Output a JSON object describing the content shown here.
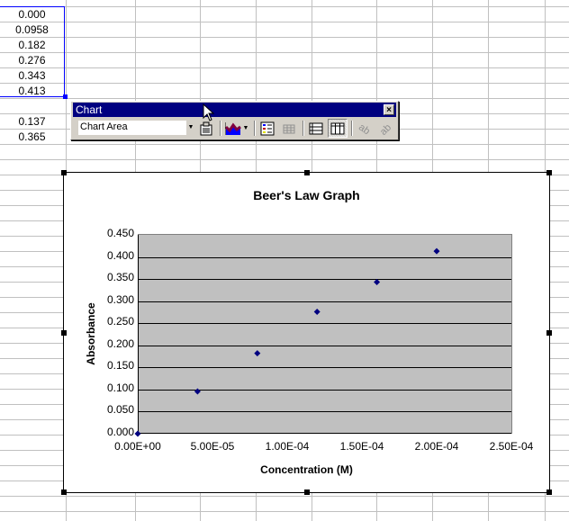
{
  "spreadsheet": {
    "column_values": [
      "0.000",
      "0.0958",
      "0.182",
      "0.276",
      "0.343",
      "0.413",
      "",
      "0.137",
      "0.365"
    ]
  },
  "toolbar": {
    "title": "Chart",
    "close_label": "×",
    "chart_objects_value": "Chart Area",
    "buttons": [
      {
        "name": "format-chart-area-icon"
      },
      {
        "name": "chart-type-icon"
      },
      {
        "name": "legend-icon"
      },
      {
        "name": "data-table-icon"
      },
      {
        "name": "by-row-icon"
      },
      {
        "name": "by-column-icon"
      },
      {
        "name": "angle-text-downward-icon"
      },
      {
        "name": "angle-text-upward-icon"
      }
    ]
  },
  "chart_data": {
    "type": "scatter",
    "title": "Beer's Law Graph",
    "xlabel": "Concentration (M)",
    "ylabel": "Absorbance",
    "x": [
      0,
      4e-05,
      8e-05,
      0.00012,
      0.00016,
      0.0002
    ],
    "series": [
      {
        "name": "Absorbance",
        "values": [
          0.0,
          0.0958,
          0.182,
          0.276,
          0.343,
          0.413
        ],
        "color": "#000080"
      }
    ],
    "xlim": [
      0,
      0.00025
    ],
    "ylim": [
      0,
      0.45
    ],
    "xticks": [
      "0.00E+00",
      "5.00E-05",
      "1.00E-04",
      "1.50E-04",
      "2.00E-04",
      "2.50E-04"
    ],
    "yticks": [
      "0.000",
      "0.050",
      "0.100",
      "0.150",
      "0.200",
      "0.250",
      "0.300",
      "0.350",
      "0.400",
      "0.450"
    ],
    "grid": true,
    "legend": "none",
    "plot_background": "#c0c0c0"
  }
}
